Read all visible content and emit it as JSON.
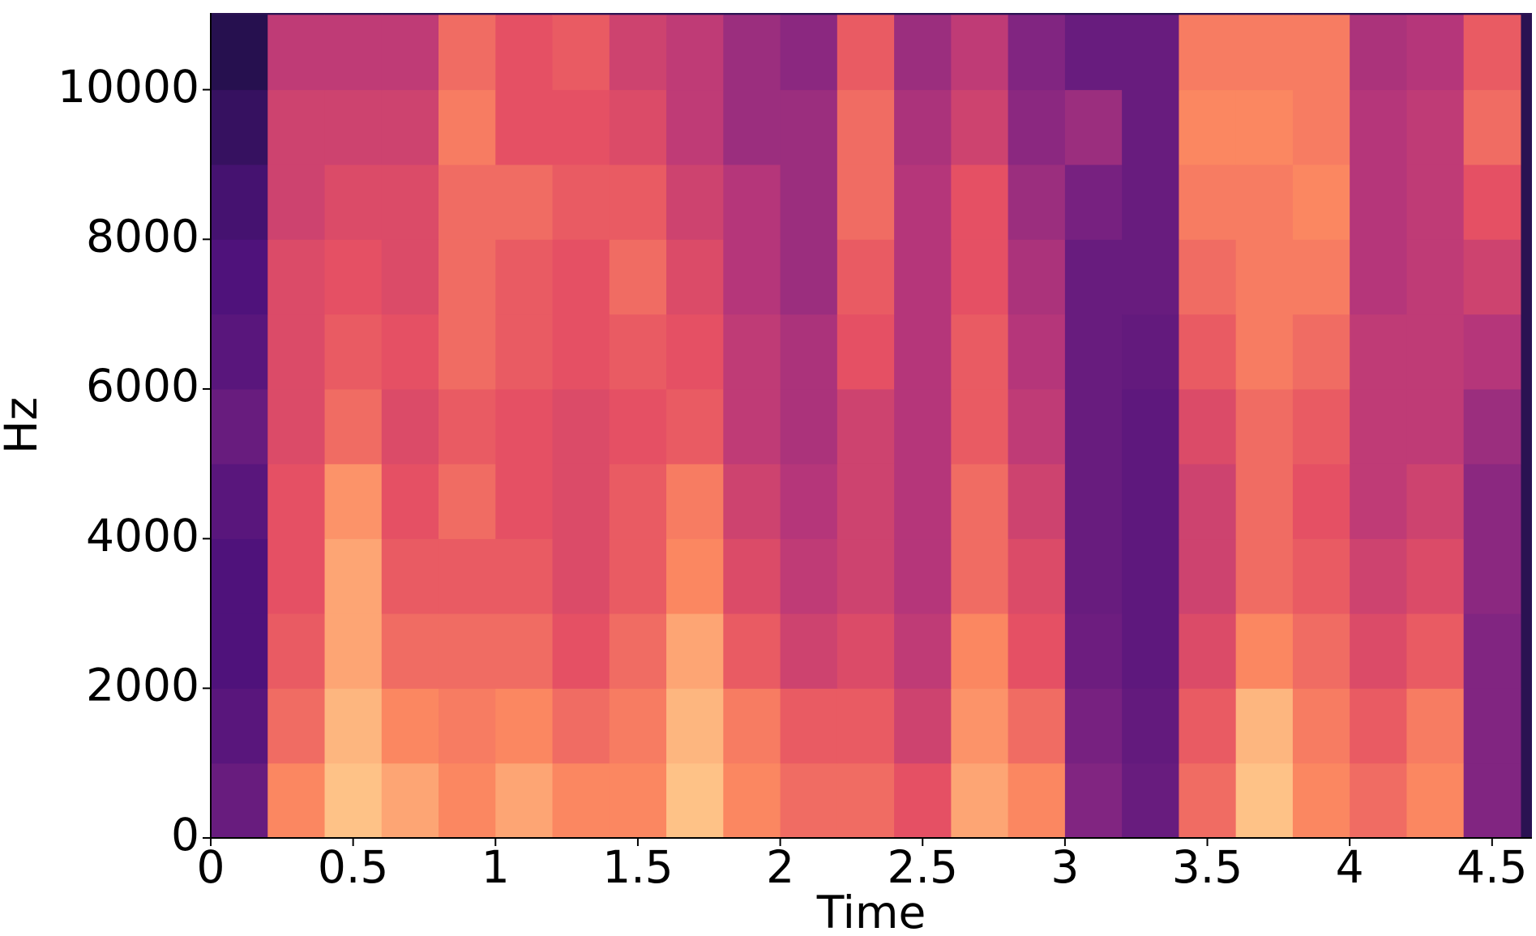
{
  "chart_data": {
    "type": "heatmap",
    "colormap": "magma",
    "xlabel": "Time",
    "ylabel": "Hz",
    "x": [
      0.1,
      0.3,
      0.5,
      0.7,
      0.9,
      1.1,
      1.3,
      1.5,
      1.7,
      1.9,
      2.1,
      2.3,
      2.5,
      2.7,
      2.9,
      3.1,
      3.3,
      3.5,
      3.7,
      3.9,
      4.1,
      4.3,
      4.5
    ],
    "y": [
      500,
      1500,
      2500,
      3500,
      4500,
      5500,
      6500,
      7500,
      8500,
      9500,
      10500
    ],
    "z": [
      [
        -55,
        -20,
        -10,
        -15,
        -20,
        -15,
        -20,
        -20,
        -10,
        -20,
        -25,
        -25,
        -30,
        -15,
        -20,
        -50,
        -55,
        -25,
        -10,
        -20,
        -25,
        -20,
        -50
      ],
      [
        -58,
        -25,
        -12,
        -20,
        -22,
        -20,
        -25,
        -22,
        -12,
        -22,
        -28,
        -28,
        -35,
        -18,
        -25,
        -52,
        -56,
        -28,
        -12,
        -22,
        -28,
        -22,
        -50
      ],
      [
        -60,
        -28,
        -15,
        -25,
        -25,
        -25,
        -30,
        -25,
        -15,
        -28,
        -35,
        -32,
        -38,
        -20,
        -30,
        -54,
        -57,
        -32,
        -20,
        -25,
        -32,
        -28,
        -50
      ],
      [
        -60,
        -30,
        -15,
        -28,
        -28,
        -28,
        -32,
        -28,
        -20,
        -32,
        -38,
        -35,
        -40,
        -25,
        -32,
        -55,
        -57,
        -35,
        -25,
        -28,
        -35,
        -32,
        -48
      ],
      [
        -58,
        -30,
        -18,
        -30,
        -25,
        -30,
        -32,
        -28,
        -22,
        -35,
        -40,
        -35,
        -40,
        -25,
        -35,
        -55,
        -57,
        -35,
        -25,
        -30,
        -38,
        -35,
        -48
      ],
      [
        -55,
        -32,
        -25,
        -32,
        -28,
        -30,
        -32,
        -30,
        -28,
        -38,
        -42,
        -35,
        -40,
        -28,
        -38,
        -55,
        -57,
        -32,
        -25,
        -28,
        -38,
        -38,
        -45
      ],
      [
        -58,
        -32,
        -28,
        -30,
        -25,
        -28,
        -30,
        -28,
        -30,
        -38,
        -42,
        -30,
        -40,
        -28,
        -40,
        -55,
        -56,
        -28,
        -22,
        -25,
        -38,
        -38,
        -40
      ],
      [
        -60,
        -32,
        -30,
        -32,
        -25,
        -28,
        -30,
        -25,
        -32,
        -40,
        -45,
        -28,
        -40,
        -30,
        -42,
        -55,
        -55,
        -25,
        -22,
        -22,
        -40,
        -38,
        -35
      ],
      [
        -62,
        -35,
        -32,
        -32,
        -25,
        -25,
        -28,
        -28,
        -35,
        -40,
        -45,
        -25,
        -40,
        -30,
        -45,
        -52,
        -55,
        -22,
        -22,
        -20,
        -40,
        -38,
        -30
      ],
      [
        -65,
        -35,
        -35,
        -35,
        -22,
        -30,
        -30,
        -32,
        -38,
        -45,
        -45,
        -25,
        -42,
        -35,
        -48,
        -45,
        -55,
        -20,
        -20,
        -22,
        -40,
        -38,
        -25
      ],
      [
        -68,
        -38,
        -38,
        -38,
        -25,
        -30,
        -28,
        -35,
        -38,
        -45,
        -48,
        -28,
        -45,
        -38,
        -50,
        -55,
        -55,
        -22,
        -22,
        -22,
        -42,
        -40,
        -28
      ]
    ],
    "zlim": [
      -80,
      0
    ],
    "xlim": [
      0,
      4.64
    ],
    "xticks": [
      0,
      0.5,
      1,
      1.5,
      2,
      2.5,
      3,
      3.5,
      4,
      4.5
    ],
    "ylim": [
      0,
      11025
    ],
    "yticks": [
      0,
      2000,
      4000,
      6000,
      8000,
      10000
    ]
  }
}
